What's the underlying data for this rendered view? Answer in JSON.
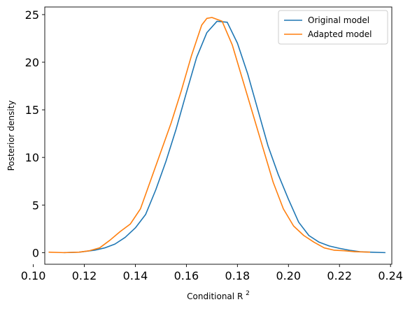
{
  "chart_data": {
    "type": "line",
    "title": "",
    "xlabel": "Conditional R",
    "xlabel_superscript": "2",
    "ylabel": "Posterior density",
    "xlim": [
      0.1045,
      0.2405
    ],
    "ylim": [
      -1.22,
      25.8
    ],
    "xticks": [
      0.1,
      0.12,
      0.14,
      0.16,
      0.18,
      0.2,
      0.22,
      0.24
    ],
    "xtick_labels": [
      "0.10",
      "0.12",
      "0.14",
      "0.16",
      "0.18",
      "0.20",
      "0.22",
      "0.24"
    ],
    "yticks": [
      0,
      5,
      10,
      15,
      20,
      25
    ],
    "ytick_labels": [
      "0",
      "5",
      "10",
      "15",
      "20",
      "25"
    ],
    "grid": false,
    "legend_position": "top-right",
    "series": [
      {
        "name": "Original model",
        "color": "#1f77b4",
        "points": [
          [
            0.112,
            0.0
          ],
          [
            0.118,
            0.05
          ],
          [
            0.124,
            0.25
          ],
          [
            0.128,
            0.5
          ],
          [
            0.132,
            0.9
          ],
          [
            0.136,
            1.6
          ],
          [
            0.14,
            2.6
          ],
          [
            0.144,
            4.0
          ],
          [
            0.148,
            6.6
          ],
          [
            0.152,
            9.6
          ],
          [
            0.156,
            13.0
          ],
          [
            0.16,
            16.8
          ],
          [
            0.164,
            20.5
          ],
          [
            0.168,
            23.1
          ],
          [
            0.172,
            24.3
          ],
          [
            0.176,
            24.2
          ],
          [
            0.18,
            22.0
          ],
          [
            0.184,
            18.8
          ],
          [
            0.188,
            15.0
          ],
          [
            0.192,
            11.2
          ],
          [
            0.196,
            8.2
          ],
          [
            0.2,
            5.6
          ],
          [
            0.204,
            3.2
          ],
          [
            0.208,
            1.8
          ],
          [
            0.212,
            1.1
          ],
          [
            0.216,
            0.7
          ],
          [
            0.22,
            0.45
          ],
          [
            0.224,
            0.25
          ],
          [
            0.228,
            0.1
          ],
          [
            0.232,
            0.05
          ],
          [
            0.238,
            0.0
          ]
        ]
      },
      {
        "name": "Adapted model",
        "color": "#ff7f0e",
        "points": [
          [
            0.106,
            0.05
          ],
          [
            0.112,
            0.0
          ],
          [
            0.118,
            0.05
          ],
          [
            0.122,
            0.2
          ],
          [
            0.126,
            0.5
          ],
          [
            0.13,
            1.3
          ],
          [
            0.134,
            2.2
          ],
          [
            0.138,
            3.0
          ],
          [
            0.142,
            4.6
          ],
          [
            0.146,
            7.6
          ],
          [
            0.15,
            10.6
          ],
          [
            0.154,
            13.6
          ],
          [
            0.158,
            17.0
          ],
          [
            0.162,
            20.7
          ],
          [
            0.166,
            23.9
          ],
          [
            0.168,
            24.6
          ],
          [
            0.17,
            24.7
          ],
          [
            0.174,
            24.3
          ],
          [
            0.178,
            21.8
          ],
          [
            0.182,
            18.2
          ],
          [
            0.186,
            14.6
          ],
          [
            0.19,
            11.0
          ],
          [
            0.194,
            7.4
          ],
          [
            0.198,
            4.6
          ],
          [
            0.202,
            2.8
          ],
          [
            0.206,
            1.8
          ],
          [
            0.21,
            1.1
          ],
          [
            0.214,
            0.5
          ],
          [
            0.218,
            0.25
          ],
          [
            0.222,
            0.2
          ],
          [
            0.226,
            0.1
          ],
          [
            0.232,
            0.05
          ]
        ]
      }
    ]
  }
}
